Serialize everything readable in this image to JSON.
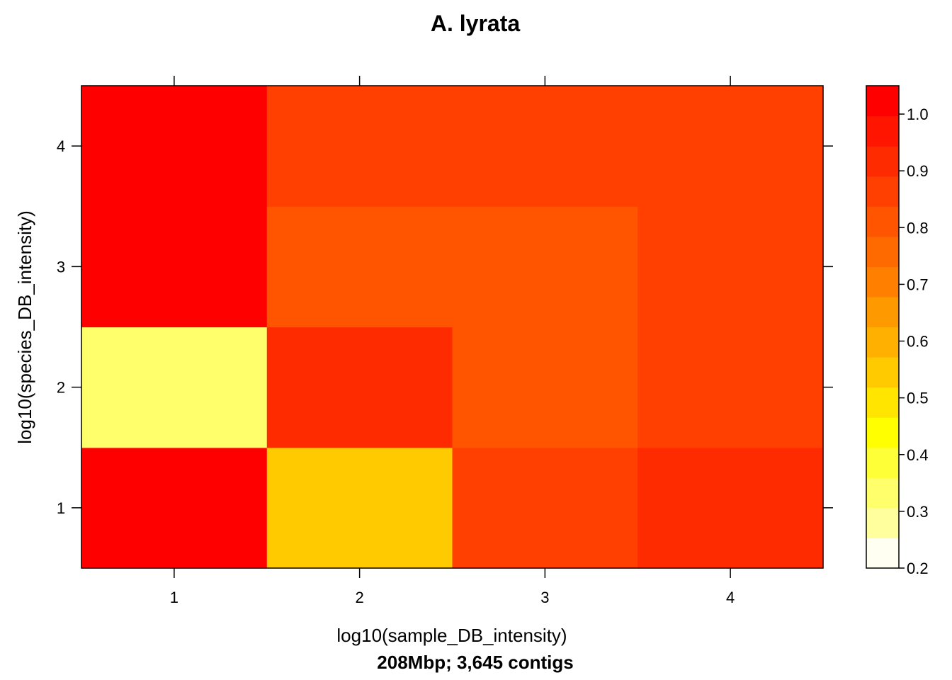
{
  "chart_data": {
    "type": "heatmap",
    "title": "A. lyrata",
    "xlabel": "log10(sample_DB_intensity)",
    "ylabel": "log10(species_DB_intensity)",
    "sub": "208Mbp; 3,645 contigs",
    "x": [
      1,
      2,
      3,
      4
    ],
    "y": [
      1,
      2,
      3,
      4
    ],
    "x_ticks": [
      "1",
      "2",
      "3",
      "4"
    ],
    "y_ticks": [
      "1",
      "2",
      "3",
      "4"
    ],
    "xlim": [
      0.5,
      4.5
    ],
    "ylim": [
      0.5,
      4.5
    ],
    "cells": [
      {
        "x": 1,
        "y": 1,
        "value": 1.0
      },
      {
        "x": 2,
        "y": 1,
        "value": 0.52
      },
      {
        "x": 3,
        "y": 1,
        "value": 0.86
      },
      {
        "x": 4,
        "y": 1,
        "value": 0.93
      },
      {
        "x": 1,
        "y": 2,
        "value": 0.35
      },
      {
        "x": 2,
        "y": 2,
        "value": 0.93
      },
      {
        "x": 3,
        "y": 2,
        "value": 0.82
      },
      {
        "x": 4,
        "y": 2,
        "value": 0.86
      },
      {
        "x": 1,
        "y": 3,
        "value": 1.0
      },
      {
        "x": 2,
        "y": 3,
        "value": 0.82
      },
      {
        "x": 3,
        "y": 3,
        "value": 0.82
      },
      {
        "x": 4,
        "y": 3,
        "value": 0.86
      },
      {
        "x": 1,
        "y": 4,
        "value": 1.0
      },
      {
        "x": 2,
        "y": 4,
        "value": 0.88
      },
      {
        "x": 3,
        "y": 4,
        "value": 0.88
      },
      {
        "x": 4,
        "y": 4,
        "value": 0.88
      }
    ],
    "colorkey": {
      "range": [
        0.2,
        1.05
      ],
      "ticks": [
        0.2,
        0.3,
        0.4,
        0.5,
        0.6,
        0.7,
        0.8,
        0.9,
        1.0
      ],
      "tick_labels": [
        "0.2",
        "0.3",
        "0.4",
        "0.5",
        "0.6",
        "0.7",
        "0.8",
        "0.9",
        "1.0"
      ],
      "bands": [
        "#FFFFF2",
        "#FFFF9E",
        "#FFFF6B",
        "#FFFF38",
        "#FFFF00",
        "#FFE500",
        "#FFCB00",
        "#FFB000",
        "#FF9900",
        "#FF8000",
        "#FF6A00",
        "#FF5500",
        "#FF4000",
        "#FF2B00",
        "#FF1500",
        "#FF0000"
      ]
    },
    "grid": false,
    "legend": "right colorkey"
  }
}
